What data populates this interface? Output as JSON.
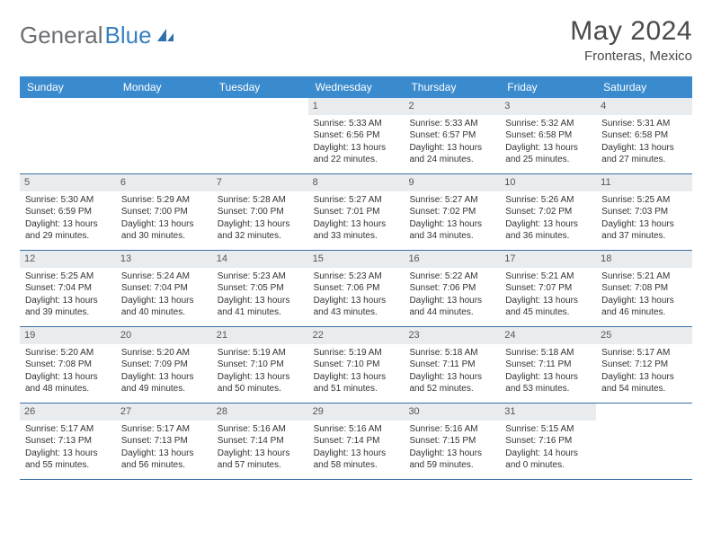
{
  "brand": {
    "part1": "General",
    "part2": "Blue"
  },
  "title": "May 2024",
  "location": "Fronteras, Mexico",
  "colors": {
    "header_bar": "#3a8bce",
    "header_text": "#ffffff",
    "day_number_bg": "#e9ecef",
    "week_border": "#3a6fa0",
    "body_text": "#333333",
    "title_text": "#4a4a4a",
    "brand_gray": "#6a6f74",
    "brand_blue": "#3a7fc1"
  },
  "weekdays": [
    "Sunday",
    "Monday",
    "Tuesday",
    "Wednesday",
    "Thursday",
    "Friday",
    "Saturday"
  ],
  "weeks": [
    [
      {
        "n": "",
        "t": ""
      },
      {
        "n": "",
        "t": ""
      },
      {
        "n": "",
        "t": ""
      },
      {
        "n": "1",
        "t": "Sunrise: 5:33 AM\nSunset: 6:56 PM\nDaylight: 13 hours and 22 minutes."
      },
      {
        "n": "2",
        "t": "Sunrise: 5:33 AM\nSunset: 6:57 PM\nDaylight: 13 hours and 24 minutes."
      },
      {
        "n": "3",
        "t": "Sunrise: 5:32 AM\nSunset: 6:58 PM\nDaylight: 13 hours and 25 minutes."
      },
      {
        "n": "4",
        "t": "Sunrise: 5:31 AM\nSunset: 6:58 PM\nDaylight: 13 hours and 27 minutes."
      }
    ],
    [
      {
        "n": "5",
        "t": "Sunrise: 5:30 AM\nSunset: 6:59 PM\nDaylight: 13 hours and 29 minutes."
      },
      {
        "n": "6",
        "t": "Sunrise: 5:29 AM\nSunset: 7:00 PM\nDaylight: 13 hours and 30 minutes."
      },
      {
        "n": "7",
        "t": "Sunrise: 5:28 AM\nSunset: 7:00 PM\nDaylight: 13 hours and 32 minutes."
      },
      {
        "n": "8",
        "t": "Sunrise: 5:27 AM\nSunset: 7:01 PM\nDaylight: 13 hours and 33 minutes."
      },
      {
        "n": "9",
        "t": "Sunrise: 5:27 AM\nSunset: 7:02 PM\nDaylight: 13 hours and 34 minutes."
      },
      {
        "n": "10",
        "t": "Sunrise: 5:26 AM\nSunset: 7:02 PM\nDaylight: 13 hours and 36 minutes."
      },
      {
        "n": "11",
        "t": "Sunrise: 5:25 AM\nSunset: 7:03 PM\nDaylight: 13 hours and 37 minutes."
      }
    ],
    [
      {
        "n": "12",
        "t": "Sunrise: 5:25 AM\nSunset: 7:04 PM\nDaylight: 13 hours and 39 minutes."
      },
      {
        "n": "13",
        "t": "Sunrise: 5:24 AM\nSunset: 7:04 PM\nDaylight: 13 hours and 40 minutes."
      },
      {
        "n": "14",
        "t": "Sunrise: 5:23 AM\nSunset: 7:05 PM\nDaylight: 13 hours and 41 minutes."
      },
      {
        "n": "15",
        "t": "Sunrise: 5:23 AM\nSunset: 7:06 PM\nDaylight: 13 hours and 43 minutes."
      },
      {
        "n": "16",
        "t": "Sunrise: 5:22 AM\nSunset: 7:06 PM\nDaylight: 13 hours and 44 minutes."
      },
      {
        "n": "17",
        "t": "Sunrise: 5:21 AM\nSunset: 7:07 PM\nDaylight: 13 hours and 45 minutes."
      },
      {
        "n": "18",
        "t": "Sunrise: 5:21 AM\nSunset: 7:08 PM\nDaylight: 13 hours and 46 minutes."
      }
    ],
    [
      {
        "n": "19",
        "t": "Sunrise: 5:20 AM\nSunset: 7:08 PM\nDaylight: 13 hours and 48 minutes."
      },
      {
        "n": "20",
        "t": "Sunrise: 5:20 AM\nSunset: 7:09 PM\nDaylight: 13 hours and 49 minutes."
      },
      {
        "n": "21",
        "t": "Sunrise: 5:19 AM\nSunset: 7:10 PM\nDaylight: 13 hours and 50 minutes."
      },
      {
        "n": "22",
        "t": "Sunrise: 5:19 AM\nSunset: 7:10 PM\nDaylight: 13 hours and 51 minutes."
      },
      {
        "n": "23",
        "t": "Sunrise: 5:18 AM\nSunset: 7:11 PM\nDaylight: 13 hours and 52 minutes."
      },
      {
        "n": "24",
        "t": "Sunrise: 5:18 AM\nSunset: 7:11 PM\nDaylight: 13 hours and 53 minutes."
      },
      {
        "n": "25",
        "t": "Sunrise: 5:17 AM\nSunset: 7:12 PM\nDaylight: 13 hours and 54 minutes."
      }
    ],
    [
      {
        "n": "26",
        "t": "Sunrise: 5:17 AM\nSunset: 7:13 PM\nDaylight: 13 hours and 55 minutes."
      },
      {
        "n": "27",
        "t": "Sunrise: 5:17 AM\nSunset: 7:13 PM\nDaylight: 13 hours and 56 minutes."
      },
      {
        "n": "28",
        "t": "Sunrise: 5:16 AM\nSunset: 7:14 PM\nDaylight: 13 hours and 57 minutes."
      },
      {
        "n": "29",
        "t": "Sunrise: 5:16 AM\nSunset: 7:14 PM\nDaylight: 13 hours and 58 minutes."
      },
      {
        "n": "30",
        "t": "Sunrise: 5:16 AM\nSunset: 7:15 PM\nDaylight: 13 hours and 59 minutes."
      },
      {
        "n": "31",
        "t": "Sunrise: 5:15 AM\nSunset: 7:16 PM\nDaylight: 14 hours and 0 minutes."
      },
      {
        "n": "",
        "t": ""
      }
    ]
  ]
}
